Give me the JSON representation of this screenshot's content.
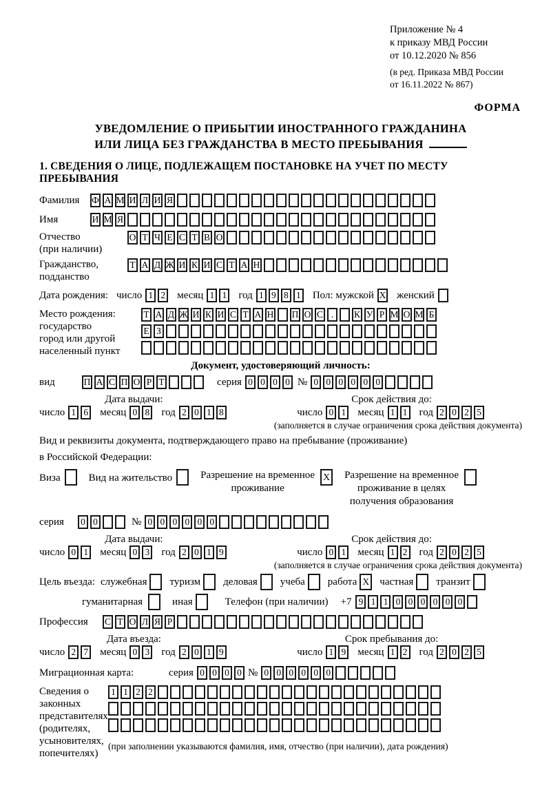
{
  "header": {
    "line1": "Приложение № 4",
    "line2": "к приказу МВД России",
    "line3": "от 10.12.2020 № 856",
    "line4": "(в ред. Приказа МВД России",
    "line5": "от 16.11.2022 № 867)",
    "forma": "ФОРМА"
  },
  "title": {
    "line1": "УВЕДОМЛЕНИЕ О ПРИБЫТИИ ИНОСТРАННОГО ГРАЖДАНИНА",
    "line2": "ИЛИ ЛИЦА БЕЗ ГРАЖДАНСТВА В МЕСТО ПРЕБЫВАНИЯ"
  },
  "section1_heading": "1. СВЕДЕНИЯ О ЛИЦЕ, ПОДЛЕЖАЩЕМ ПОСТАНОВКЕ НА УЧЕТ ПО МЕСТУ ПРЕБЫВАНИЯ",
  "labels": {
    "day": "число",
    "month": "месяц",
    "year": "год",
    "seriya": "серия",
    "nomer": "№"
  },
  "person": {
    "surname": {
      "label": "Фамилия",
      "v": "ФАМИЛИЯ",
      "n": 28
    },
    "name": {
      "label": "Имя",
      "v": "ИМЯ",
      "n": 28
    },
    "patronymic": {
      "label1": "Отчество",
      "label2": "(при наличии)",
      "v": "ОТЧЕСТВО",
      "n": 25
    },
    "citizenship": {
      "label1": "Гражданство,",
      "label2": "подданство",
      "v": "ТАДЖИКИСТАН",
      "n": 26
    },
    "birth": {
      "label": "Дата рождения:",
      "day": {
        "v": "12"
      },
      "month": {
        "v": "11"
      },
      "year": {
        "v": "1981"
      },
      "sex_label_male": "Пол: мужской",
      "male": {
        "v": "X",
        "n": 1
      },
      "sex_label_female": "женский",
      "female": {
        "v": "",
        "n": 1
      }
    },
    "birthplace": {
      "label1": "Место рождения:",
      "label2": "государство",
      "label3": "город или другой",
      "label4": "населенный пункт",
      "row1": {
        "v": "ТАДЖИКИСТАН ПОС. КУРМОМБ",
        "n": 24
      },
      "row2": {
        "v": "ЕЗ",
        "n": 24
      },
      "row3": {
        "v": "",
        "n": 24
      }
    }
  },
  "identity_doc": {
    "heading": "Документ, удостоверяющий личность:",
    "vid_label": "вид",
    "vid": {
      "v": "ПАСПОРТ",
      "n": 10
    },
    "seriya": {
      "v": "0000",
      "n": 4
    },
    "nomer": {
      "v": "000000",
      "n": 10
    },
    "issue": {
      "heading": "Дата выдачи:",
      "day": {
        "v": "16"
      },
      "month": {
        "v": "08"
      },
      "year": {
        "v": "2018"
      }
    },
    "expiry": {
      "heading": "Срок действия до:",
      "day": {
        "v": "01"
      },
      "month": {
        "v": "11"
      },
      "year": {
        "v": "2025"
      }
    },
    "note": "(заполняется в случае ограничения срока действия документа)"
  },
  "residence_doc": {
    "intro1": "Вид и реквизиты документа, подтверждающего право на пребывание (проживание)",
    "intro2": "в Российской Федерации:",
    "visa_label": "Виза",
    "visa": {
      "v": "",
      "n": 1
    },
    "vnzh_label": "Вид на жительство",
    "vnzh": {
      "v": "",
      "n": 1
    },
    "rvp_l1": "Разрешение на временное",
    "rvp_l2": "проживание",
    "rvp": {
      "v": "X",
      "n": 1
    },
    "rvpo_l1": "Разрешение на временное",
    "rvpo_l2": "проживание в целях",
    "rvpo_l3": "получения образования",
    "rvpo": {
      "v": "",
      "n": 1
    },
    "seriya": {
      "v": "00",
      "n": 4
    },
    "nomer": {
      "v": "000000",
      "n": 15
    },
    "issue": {
      "heading": "Дата выдачи:",
      "day": {
        "v": "01"
      },
      "month": {
        "v": "03"
      },
      "year": {
        "v": "2019"
      }
    },
    "expiry": {
      "heading": "Срок действия до:",
      "day": {
        "v": "01"
      },
      "month": {
        "v": "12"
      },
      "year": {
        "v": "2025"
      }
    },
    "note": "(заполняется в случае ограничения срока действия документа)"
  },
  "purpose": {
    "label": "Цель въезда:",
    "opt_sluzhebnaya": "служебная",
    "sluzhebnaya": {
      "v": "",
      "n": 1
    },
    "opt_turizm": "туризм",
    "turizm": {
      "v": "",
      "n": 1
    },
    "opt_delovaya": "деловая",
    "delovaya": {
      "v": "",
      "n": 1
    },
    "opt_ucheba": "учеба",
    "ucheba": {
      "v": "",
      "n": 1
    },
    "opt_rabota": "работа",
    "rabota": {
      "v": "X",
      "n": 1
    },
    "opt_chastnaya": "частная",
    "chastnaya": {
      "v": "",
      "n": 1
    },
    "opt_tranzit": "транзит",
    "tranzit": {
      "v": "",
      "n": 1
    },
    "opt_gumanitarnaya": "гуманитарная",
    "gumanitarnaya": {
      "v": "",
      "n": 1
    },
    "opt_inaya": "иная",
    "inaya": {
      "v": "",
      "n": 1
    },
    "phone_label": "Телефон (при наличии)",
    "phone_prefix": "+7",
    "phone": {
      "v": "911000000",
      "n": 10
    }
  },
  "profession": {
    "label": "Профессия",
    "v": "СТОЛЯР",
    "n": 26
  },
  "entry_dates": {
    "entry": {
      "heading": "Дата въезда:",
      "day": {
        "v": "27"
      },
      "month": {
        "v": "03"
      },
      "year": {
        "v": "2019"
      }
    },
    "stay": {
      "heading": "Срок пребывания до:",
      "day": {
        "v": "19"
      },
      "month": {
        "v": "12"
      },
      "year": {
        "v": "2025"
      }
    }
  },
  "migration_card": {
    "label": "Миграционная карта:",
    "seriya": {
      "v": "0000",
      "n": 4
    },
    "nomer": {
      "v": "000000",
      "n": 11
    }
  },
  "representatives": {
    "label1": "Сведения о",
    "label2": "законных",
    "label3": "представителях",
    "label4": "(родителях,",
    "label5": "усыновителях,",
    "label6": "попечителях)",
    "row1": {
      "v": "1122",
      "n": 27
    },
    "row2": {
      "v": "",
      "n": 27
    },
    "row3": {
      "v": "",
      "n": 27
    },
    "note": "(при заполнении указываются фамилия, имя, отчество (при наличии), дата рождения)"
  }
}
